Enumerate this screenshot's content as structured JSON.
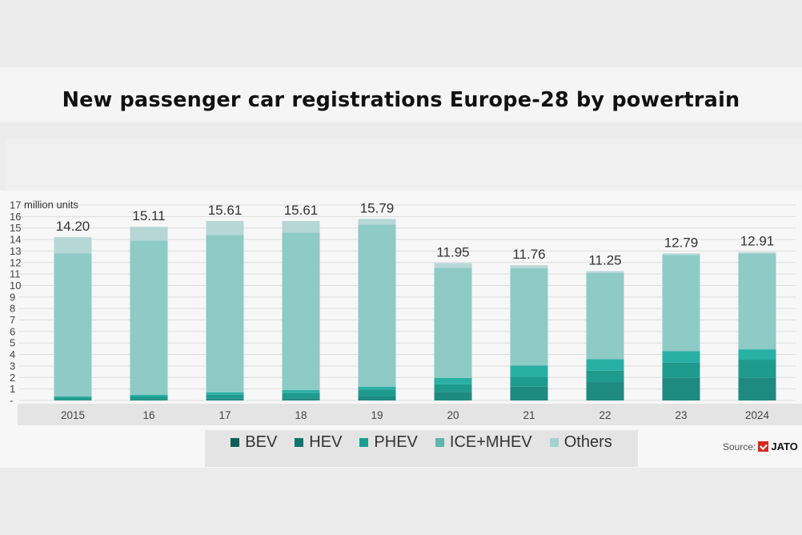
{
  "title": "New passenger car registrations Europe-28 by powertrain",
  "chart_data": {
    "type": "bar",
    "stacked": true,
    "title": "New passenger car registrations Europe-28 by powertrain",
    "ylabel": "million units",
    "ylim": [
      0,
      17
    ],
    "yticks": [
      "-",
      "1",
      "2",
      "3",
      "4",
      "5",
      "6",
      "7",
      "8",
      "9",
      "10",
      "11",
      "12",
      "13",
      "14",
      "15",
      "16",
      "17"
    ],
    "grid": true,
    "legend_position": "bottom",
    "categories": [
      "2015",
      "16",
      "17",
      "18",
      "19",
      "20",
      "21",
      "22",
      "23",
      "2024"
    ],
    "totals": [
      14.2,
      15.11,
      15.61,
      15.61,
      15.79,
      11.95,
      11.76,
      11.25,
      12.79,
      12.91
    ],
    "total_labels": [
      "14.20",
      "15.11",
      "15.61",
      "15.61",
      "15.79",
      "11.95",
      "11.76",
      "11.25",
      "12.79",
      "12.91"
    ],
    "series": [
      {
        "name": "BEV",
        "color": "#1e8a80",
        "values": [
          0.05,
          0.1,
          0.15,
          0.2,
          0.35,
          0.75,
          1.2,
          1.6,
          2.0,
          2.0
        ]
      },
      {
        "name": "HEV",
        "color": "#1f9b8e",
        "values": [
          0.2,
          0.25,
          0.35,
          0.45,
          0.6,
          0.65,
          0.85,
          1.0,
          1.3,
          1.55
        ]
      },
      {
        "name": "PHEV",
        "color": "#29b0a4",
        "values": [
          0.1,
          0.15,
          0.2,
          0.25,
          0.25,
          0.55,
          1.0,
          1.0,
          1.0,
          0.9
        ]
      },
      {
        "name": "ICE+MHEV",
        "color": "#8ecac6",
        "values": [
          12.45,
          13.4,
          13.7,
          13.7,
          14.1,
          9.6,
          8.45,
          7.5,
          8.35,
          8.3
        ]
      },
      {
        "name": "Others",
        "color": "#b5d8d6",
        "values": [
          1.4,
          1.21,
          1.21,
          1.01,
          0.49,
          0.4,
          0.26,
          0.15,
          0.14,
          0.16
        ]
      }
    ]
  },
  "legend": {
    "items": [
      {
        "label": "BEV",
        "color": "#0e5e5a"
      },
      {
        "label": "HEV",
        "color": "#13736d"
      },
      {
        "label": "PHEV",
        "color": "#1b9e94"
      },
      {
        "label": "ICE+MHEV",
        "color": "#5fb5ae"
      },
      {
        "label": "Others",
        "color": "#a4d2cf"
      }
    ]
  },
  "source": {
    "label": "Source:",
    "brand": "JATO"
  }
}
